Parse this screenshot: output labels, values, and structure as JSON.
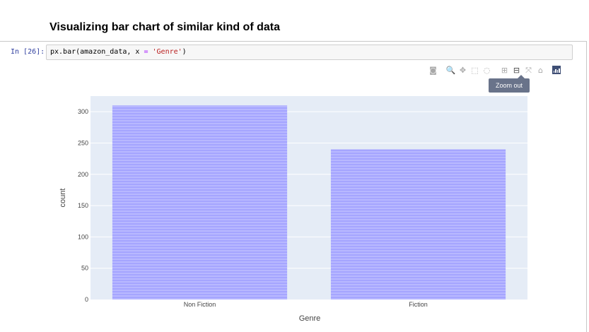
{
  "notebook": {
    "heading": "Visualizing bar chart of similar kind of data",
    "prompt": "In [26]:",
    "code": {
      "fn": "px.bar(amazon_data, x ",
      "op": "=",
      "sp": " ",
      "arg": "'Genre'",
      "close": ")"
    }
  },
  "modebar": {
    "buttons": [
      {
        "name": "camera-icon",
        "glyph": "◙"
      },
      {
        "name": "zoom-icon",
        "glyph": "🔍"
      },
      {
        "name": "pan-icon",
        "glyph": "✥"
      },
      {
        "name": "box-select-icon",
        "glyph": "⬚"
      },
      {
        "name": "lasso-select-icon",
        "glyph": "◌"
      },
      {
        "name": "zoom-in-icon",
        "glyph": "⊞"
      },
      {
        "name": "zoom-out-icon",
        "glyph": "⊟"
      },
      {
        "name": "autoscale-icon",
        "glyph": "⤧"
      },
      {
        "name": "reset-axes-icon",
        "glyph": "⌂"
      }
    ],
    "tooltip": "Zoom out"
  },
  "chart_data": {
    "type": "bar",
    "categories": [
      "Non Fiction",
      "Fiction"
    ],
    "values": [
      310,
      240
    ],
    "xlabel": "Genre",
    "ylabel": "count",
    "ylim": [
      0,
      325
    ],
    "yticks": [
      0,
      50,
      100,
      150,
      200,
      250,
      300
    ],
    "grid": true,
    "bar_color": "#a5a5ff",
    "bar_stripe_color": "#b8b8ff",
    "plot_bg": "#e5ecf6"
  }
}
